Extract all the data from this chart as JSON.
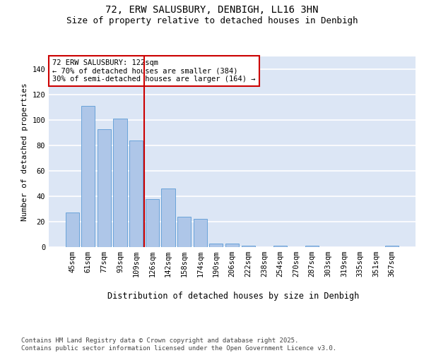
{
  "title": "72, ERW SALUSBURY, DENBIGH, LL16 3HN",
  "subtitle": "Size of property relative to detached houses in Denbigh",
  "xlabel": "Distribution of detached houses by size in Denbigh",
  "ylabel": "Number of detached properties",
  "categories": [
    "45sqm",
    "61sqm",
    "77sqm",
    "93sqm",
    "109sqm",
    "126sqm",
    "142sqm",
    "158sqm",
    "174sqm",
    "190sqm",
    "206sqm",
    "222sqm",
    "238sqm",
    "254sqm",
    "270sqm",
    "287sqm",
    "303sqm",
    "319sqm",
    "335sqm",
    "351sqm",
    "367sqm"
  ],
  "values": [
    27,
    111,
    93,
    101,
    84,
    38,
    46,
    24,
    22,
    3,
    3,
    1,
    0,
    1,
    0,
    1,
    0,
    0,
    0,
    0,
    1
  ],
  "bar_color": "#aec6e8",
  "bar_edge_color": "#5b9bd5",
  "vline_x": 4.5,
  "vline_color": "#cc0000",
  "annotation_text": "72 ERW SALUSBURY: 122sqm\n← 70% of detached houses are smaller (384)\n30% of semi-detached houses are larger (164) →",
  "annotation_box_color": "#ffffff",
  "annotation_box_edge": "#cc0000",
  "ylim": [
    0,
    150
  ],
  "yticks": [
    0,
    20,
    40,
    60,
    80,
    100,
    120,
    140
  ],
  "background_color": "#dce6f5",
  "footer_text": "Contains HM Land Registry data © Crown copyright and database right 2025.\nContains public sector information licensed under the Open Government Licence v3.0.",
  "title_fontsize": 10,
  "subtitle_fontsize": 9,
  "xlabel_fontsize": 8.5,
  "ylabel_fontsize": 8,
  "tick_fontsize": 7.5,
  "annotation_fontsize": 7.5,
  "footer_fontsize": 6.5
}
